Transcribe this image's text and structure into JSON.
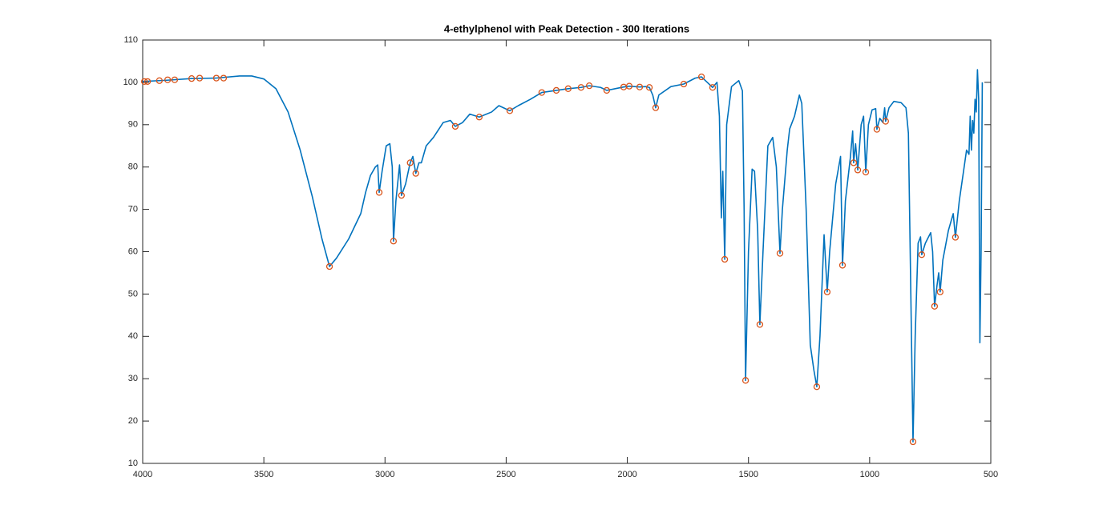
{
  "chart_data": {
    "type": "line",
    "title": "4-ethylphenol with Peak Detection - 300 Iterations",
    "xlim": [
      4000,
      500
    ],
    "x_reversed": true,
    "ylim": [
      10,
      110
    ],
    "xticks": [
      4000,
      3500,
      3000,
      2500,
      2000,
      1500,
      1000,
      500
    ],
    "yticks": [
      10,
      20,
      30,
      40,
      50,
      60,
      70,
      80,
      90,
      100,
      110
    ],
    "grid": false,
    "series": [
      {
        "mode": "line",
        "color": "#0072bd",
        "x": [
          4000,
          3900,
          3800,
          3700,
          3600,
          3550,
          3500,
          3450,
          3400,
          3350,
          3300,
          3260,
          3229,
          3200,
          3150,
          3100,
          3080,
          3060,
          3040,
          3030,
          3024,
          3012,
          2995,
          2980,
          2970,
          2965,
          2955,
          2940,
          2932,
          2915,
          2900,
          2896,
          2885,
          2873,
          2860,
          2850,
          2830,
          2800,
          2760,
          2730,
          2710,
          2680,
          2650,
          2611,
          2560,
          2530,
          2485,
          2450,
          2400,
          2353,
          2293,
          2244,
          2191,
          2157,
          2110,
          2085,
          2050,
          2015,
          1992,
          1949,
          1925,
          1909,
          1895,
          1883,
          1870,
          1820,
          1767,
          1720,
          1694,
          1670,
          1648,
          1630,
          1620,
          1612,
          1606,
          1598,
          1590,
          1570,
          1540,
          1525,
          1518,
          1512,
          1500,
          1485,
          1475,
          1462,
          1453,
          1440,
          1420,
          1400,
          1385,
          1370,
          1360,
          1340,
          1330,
          1310,
          1290,
          1280,
          1262,
          1245,
          1230,
          1218,
          1205,
          1188,
          1175,
          1165,
          1140,
          1120,
          1112,
          1100,
          1080,
          1070,
          1066,
          1058,
          1049,
          1035,
          1025,
          1016,
          1005,
          990,
          975,
          970,
          958,
          945,
          938,
          934,
          920,
          900,
          870,
          850,
          840,
          830,
          821,
          812,
          800,
          790,
          785,
          770,
          748,
          740,
          732,
          722,
          715,
          709,
          698,
          675,
          655,
          646,
          630,
          610,
          600,
          590,
          585,
          580,
          575,
          570,
          565,
          560,
          555,
          550,
          545,
          540,
          535
        ],
        "values": [
          100.2,
          100.5,
          100.9,
          101.0,
          101.5,
          101.5,
          100.8,
          98.5,
          93,
          84,
          73,
          63,
          56.5,
          58.5,
          63,
          69,
          74,
          78,
          80,
          80.5,
          74,
          79,
          85,
          85.5,
          80,
          62.5,
          72,
          80.5,
          73.3,
          76,
          80,
          81,
          82.5,
          78.5,
          81,
          81,
          85,
          87,
          90.5,
          91,
          89.6,
          90.5,
          92.5,
          91.8,
          93,
          94.5,
          93.3,
          94.5,
          96,
          97.6,
          98.1,
          98.5,
          98.8,
          99.2,
          98.8,
          98.1,
          98.5,
          98.9,
          99.1,
          98.9,
          99,
          98.8,
          97,
          94,
          97,
          99,
          99.6,
          101,
          101.3,
          100,
          98.8,
          100,
          92,
          68,
          79,
          58.2,
          90,
          99,
          100.4,
          98,
          70,
          29.6,
          60,
          79.5,
          79,
          65,
          42.8,
          60,
          85,
          87,
          80,
          59.6,
          70,
          84,
          89,
          92,
          97,
          95,
          70,
          38,
          32,
          28.1,
          40,
          64,
          50.5,
          60,
          76,
          82.5,
          56.8,
          72,
          82,
          88.5,
          81,
          85.5,
          79.3,
          90,
          92,
          78.8,
          90,
          93.5,
          93.8,
          88.9,
          91.5,
          90.5,
          94,
          90.8,
          94,
          95.5,
          95.2,
          94,
          88,
          50,
          15.1,
          40,
          62,
          63.5,
          59.3,
          62,
          64.5,
          60,
          47.1,
          52,
          55,
          50.5,
          58,
          65,
          69,
          63.4,
          72,
          80,
          84,
          83,
          92,
          84,
          91,
          88,
          96,
          93,
          103,
          96,
          38.5,
          60,
          100
        ]
      },
      {
        "mode": "markers",
        "color": "#d95319",
        "x": [
          3993,
          3980,
          3931,
          3897,
          3868,
          3798,
          3765,
          3696,
          3666,
          3229,
          3024,
          2965,
          2932,
          2896,
          2873,
          2710,
          2611,
          2485,
          2353,
          2293,
          2244,
          2191,
          2157,
          2085,
          2015,
          1992,
          1949,
          1909,
          1883,
          1767,
          1694,
          1648,
          1598,
          1512,
          1453,
          1370,
          1218,
          1175,
          1112,
          1066,
          1049,
          1016,
          970,
          934,
          821,
          785,
          732,
          709,
          646
        ],
        "values": [
          100.2,
          100.2,
          100.4,
          100.6,
          100.6,
          100.9,
          101,
          101,
          101,
          56.5,
          74,
          62.5,
          73.3,
          81,
          78.5,
          89.6,
          91.8,
          93.3,
          97.6,
          98.1,
          98.5,
          98.8,
          99.2,
          98.1,
          98.9,
          99.1,
          98.9,
          98.8,
          94,
          99.6,
          101.3,
          98.8,
          58.2,
          29.6,
          42.8,
          59.6,
          28.1,
          50.5,
          56.8,
          81,
          79.3,
          78.8,
          88.9,
          90.8,
          15.1,
          59.3,
          47.1,
          50.5,
          63.4
        ]
      }
    ]
  }
}
